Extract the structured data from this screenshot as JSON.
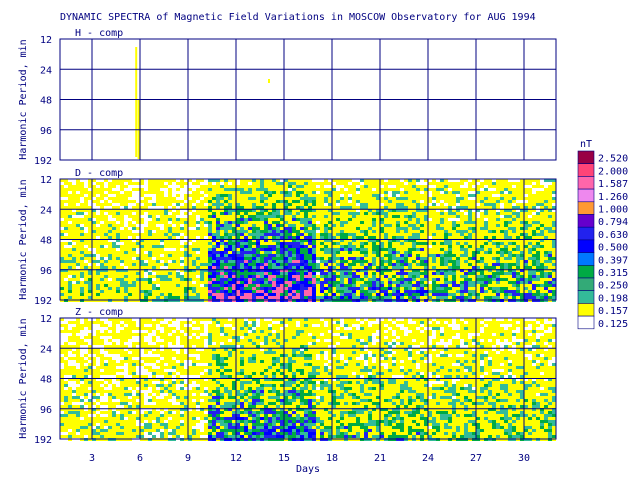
{
  "chart_data": {
    "type": "heatmap",
    "title": "DYNAMIC SPECTRA of Magnetic Field Variations in MOSCOW Observatory for AUG 1994",
    "xlabel": "Days",
    "ylabel": "Harmonic Period, min",
    "x_ticks": [
      3,
      6,
      9,
      12,
      15,
      18,
      21,
      24,
      27,
      30
    ],
    "x_range": [
      1,
      32
    ],
    "y_ticks": [
      12,
      24,
      48,
      96,
      192
    ],
    "y_scale": "log2",
    "legend": {
      "unit": "nT",
      "levels": [
        2.52,
        2.0,
        1.587,
        1.26,
        1.0,
        0.794,
        0.63,
        0.5,
        0.397,
        0.315,
        0.25,
        0.198,
        0.157,
        0.125
      ],
      "level_labels": [
        "2.520",
        "2.000",
        "1.587",
        "1.260",
        "1.000",
        "0.794",
        "0.630",
        "0.500",
        "0.397",
        "0.315",
        "0.250",
        "0.198",
        "0.157",
        "0.125"
      ],
      "colors": [
        "#990044",
        "#ff4477",
        "#ff66aa",
        "#ee88ee",
        "#ff9933",
        "#6600cc",
        "#2222ee",
        "#0000ff",
        "#0077ff",
        "#00aa44",
        "#33aa77",
        "#33bb99",
        "#ffff00",
        "#ffffff"
      ]
    },
    "panels": [
      {
        "name": "H - comp",
        "activity": "low"
      },
      {
        "name": "D - comp",
        "activity": "high"
      },
      {
        "name": "Z - comp",
        "activity": "medium"
      }
    ]
  }
}
